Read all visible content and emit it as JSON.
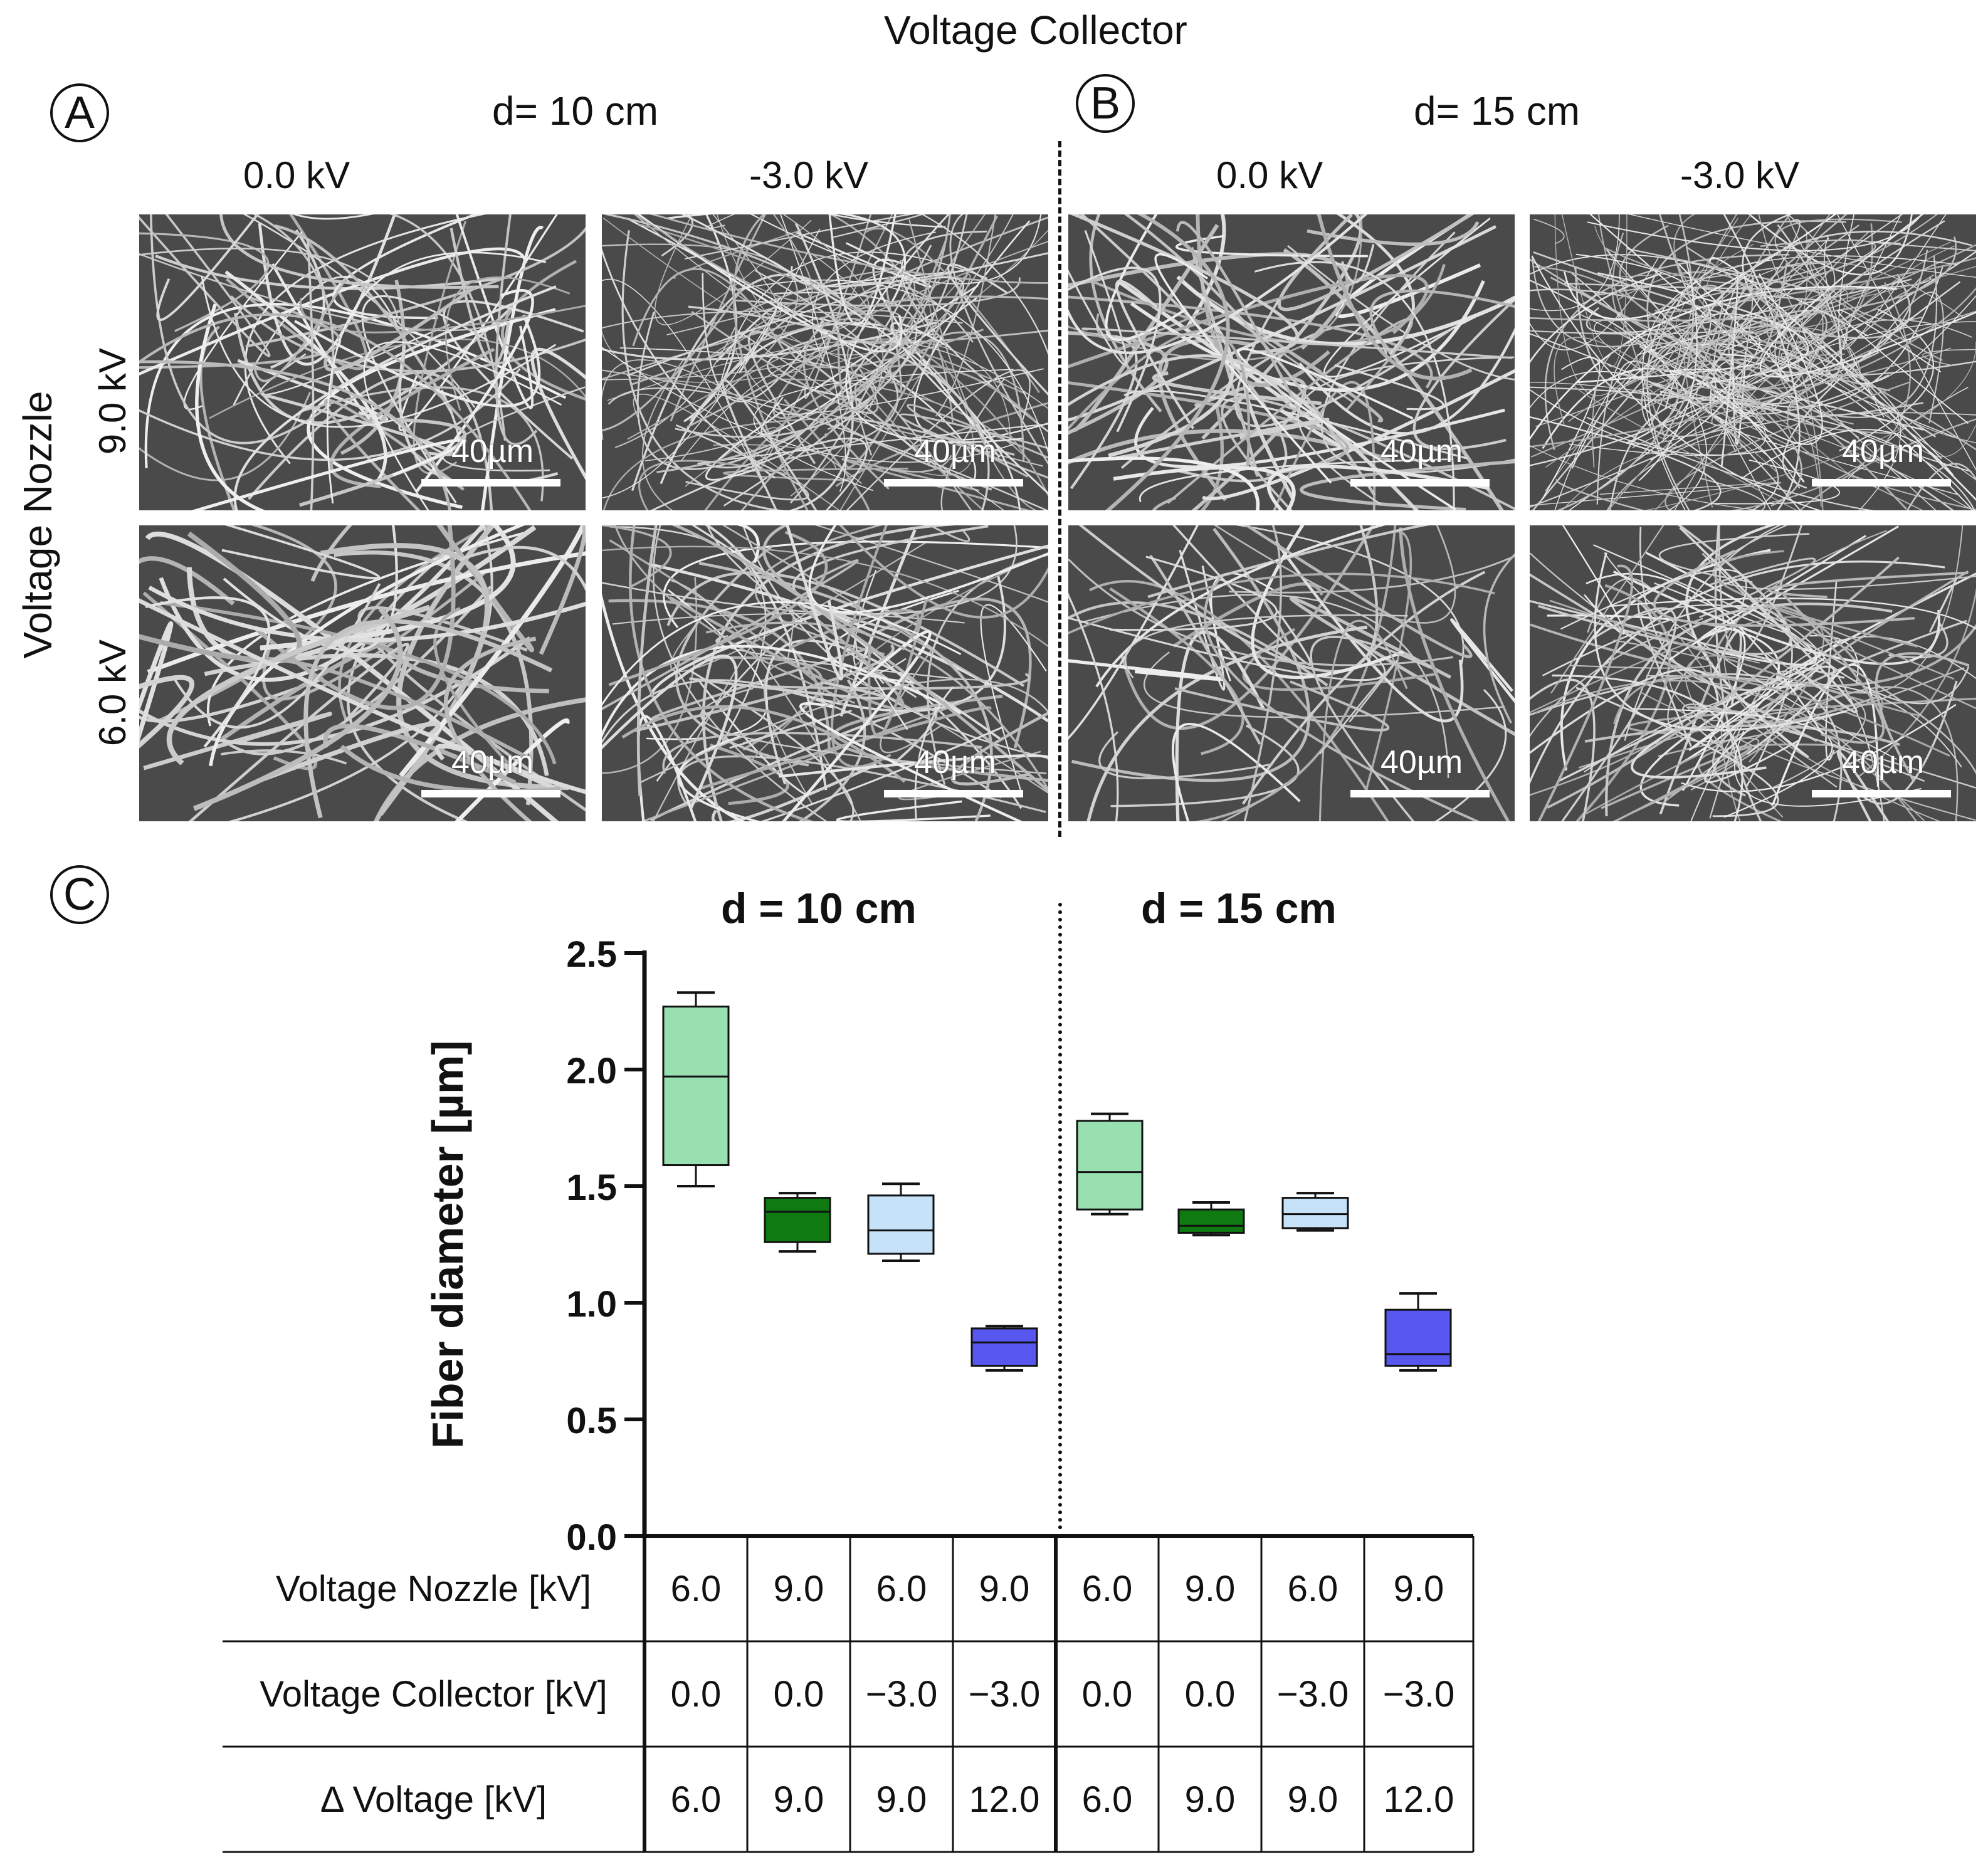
{
  "figure": {
    "top_header": "Voltage Collector",
    "side_header": "Voltage Nozzle",
    "panels": {
      "A": {
        "letter": "A",
        "distance": "d= 10 cm"
      },
      "B": {
        "letter": "B",
        "distance": "d= 15 cm"
      },
      "C": {
        "letter": "C"
      }
    },
    "column_headers": [
      "0.0 kV",
      "-3.0 kV",
      "0.0 kV",
      "-3.0 kV"
    ],
    "row_headers": [
      "9.0 kV",
      "6.0 kV"
    ],
    "scale_bar_label": "40µm",
    "sem_images": [
      {
        "id": "A-9.0-0.0",
        "density": "medium"
      },
      {
        "id": "A-9.0-neg3.0",
        "density": "high"
      },
      {
        "id": "B-9.0-0.0",
        "density": "medium"
      },
      {
        "id": "B-9.0-neg3.0",
        "density": "very-high"
      },
      {
        "id": "A-6.0-0.0",
        "density": "thick"
      },
      {
        "id": "A-6.0-neg3.0",
        "density": "medium"
      },
      {
        "id": "B-6.0-0.0",
        "density": "sparse"
      },
      {
        "id": "B-6.0-neg3.0",
        "density": "medium"
      }
    ]
  },
  "chart_data": {
    "type": "box",
    "group_titles": [
      "d = 10 cm",
      "d = 15 cm"
    ],
    "ylabel": "Fiber diameter [µm]",
    "ylim": [
      0,
      2.5
    ],
    "yticks": [
      "0.0",
      "0.5",
      "1.0",
      "1.5",
      "2.0",
      "2.5"
    ],
    "grid": false,
    "boxes": [
      {
        "group": "d = 10 cm",
        "color": "#98e0b0",
        "min": 1.5,
        "q1": 1.59,
        "median": 1.97,
        "q3": 2.27,
        "max": 2.33
      },
      {
        "group": "d = 10 cm",
        "color": "#0f7a12",
        "min": 1.22,
        "q1": 1.26,
        "median": 1.39,
        "q3": 1.45,
        "max": 1.47
      },
      {
        "group": "d = 10 cm",
        "color": "#c5e2f8",
        "min": 1.18,
        "q1": 1.21,
        "median": 1.31,
        "q3": 1.46,
        "max": 1.51
      },
      {
        "group": "d = 10 cm",
        "color": "#5757f0",
        "min": 0.71,
        "q1": 0.73,
        "median": 0.83,
        "q3": 0.89,
        "max": 0.9
      },
      {
        "group": "d = 15 cm",
        "color": "#98e0b0",
        "min": 1.38,
        "q1": 1.4,
        "median": 1.56,
        "q3": 1.78,
        "max": 1.81
      },
      {
        "group": "d = 15 cm",
        "color": "#0f7a12",
        "min": 1.29,
        "q1": 1.3,
        "median": 1.33,
        "q3": 1.4,
        "max": 1.43
      },
      {
        "group": "d = 15 cm",
        "color": "#c5e2f8",
        "min": 1.31,
        "q1": 1.32,
        "median": 1.38,
        "q3": 1.45,
        "max": 1.47
      },
      {
        "group": "d = 15 cm",
        "color": "#5757f0",
        "min": 0.71,
        "q1": 0.73,
        "median": 0.78,
        "q3": 0.97,
        "max": 1.04
      }
    ],
    "table": {
      "rows": [
        {
          "label": "Voltage Nozzle [kV]",
          "values": [
            "6.0",
            "9.0",
            "6.0",
            "9.0",
            "6.0",
            "9.0",
            "6.0",
            "9.0"
          ]
        },
        {
          "label": "Voltage Collector [kV]",
          "values": [
            "0.0",
            "0.0",
            "−3.0",
            "−3.0",
            "0.0",
            "0.0",
            "−3.0",
            "−3.0"
          ]
        },
        {
          "label": "Δ Voltage [kV]",
          "values": [
            "6.0",
            "9.0",
            "9.0",
            "12.0",
            "6.0",
            "9.0",
            "9.0",
            "12.0"
          ]
        }
      ]
    }
  }
}
